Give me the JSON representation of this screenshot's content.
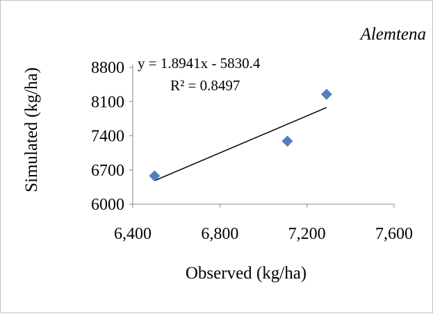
{
  "chart_data": {
    "type": "scatter",
    "title": "",
    "subtitle": "Alemtena",
    "xlabel": "Observed (kg/ha)",
    "ylabel": "Simulated (kg/ha)",
    "xlim": [
      6400,
      7600
    ],
    "ylim": [
      6000,
      8800
    ],
    "x_ticks": [
      "6,400",
      "6,800",
      "7,200",
      "7,600"
    ],
    "x_tick_values": [
      6400,
      6800,
      7200,
      7600
    ],
    "y_ticks": [
      "6000",
      "6700",
      "7400",
      "8100",
      "8800"
    ],
    "y_tick_values": [
      6000,
      6700,
      7400,
      8100,
      8800
    ],
    "series": [
      {
        "marker": "diamond",
        "color": "#4f81bd",
        "points": [
          {
            "x": 6500,
            "y": 6580
          },
          {
            "x": 7110,
            "y": 7290
          },
          {
            "x": 7290,
            "y": 8250
          }
        ]
      }
    ],
    "trendline": {
      "type": "linear",
      "slope": 1.8941,
      "intercept": -5830.4,
      "x_range": [
        6500,
        7290
      ],
      "color": "#000000",
      "equation_label": "y = 1.8941x - 5830.4",
      "r2_label": "R² = 0.8497"
    },
    "grid": false,
    "legend": "none",
    "axis_color": "#868686"
  }
}
